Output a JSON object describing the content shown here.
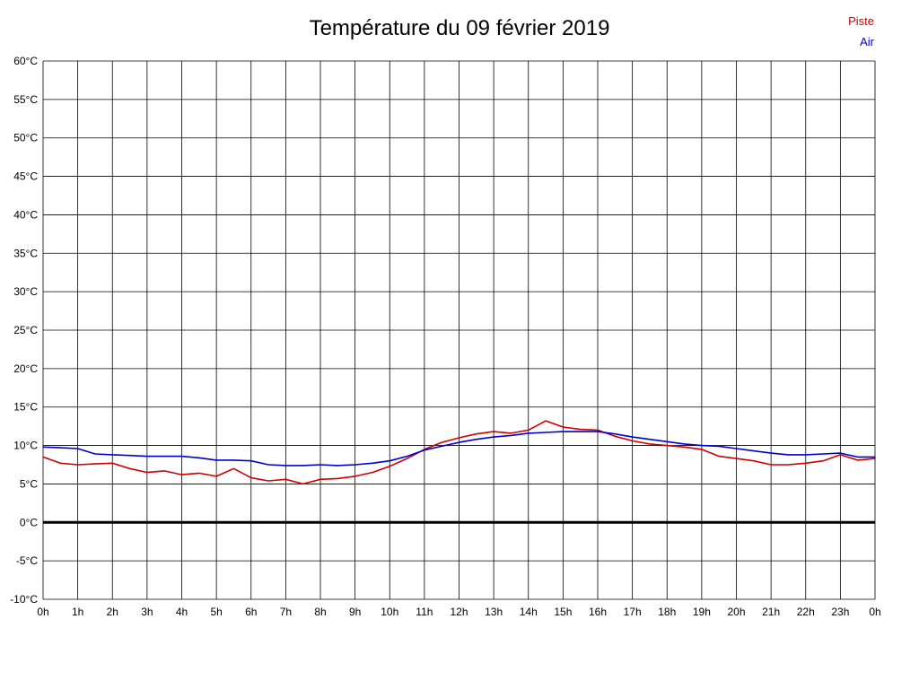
{
  "title": "Température du 09 février 2019",
  "legend": [
    {
      "label": "Piste",
      "color": "#cc0000"
    },
    {
      "label": "Air",
      "color": "#0000cc"
    }
  ],
  "chart_data": {
    "type": "line",
    "title": "Température du 09 février 2019",
    "xlabel": "",
    "ylabel": "",
    "xlim": [
      0,
      24
    ],
    "ylim": [
      -10,
      60
    ],
    "grid": true,
    "zero_line": true,
    "legend_position": "top-right",
    "y_ticks": [
      60,
      55,
      50,
      45,
      40,
      35,
      30,
      25,
      20,
      15,
      10,
      5,
      0,
      -5,
      -10
    ],
    "y_tick_suffix": "°C",
    "x_tick_labels": [
      "0h",
      "1h",
      "2h",
      "3h",
      "4h",
      "5h",
      "6h",
      "7h",
      "8h",
      "9h",
      "10h",
      "11h",
      "12h",
      "13h",
      "14h",
      "15h",
      "16h",
      "17h",
      "18h",
      "19h",
      "20h",
      "21h",
      "22h",
      "23h",
      "0h"
    ],
    "x": [
      0,
      0.5,
      1,
      1.5,
      2,
      2.5,
      3,
      3.5,
      4,
      4.5,
      5,
      5.5,
      6,
      6.5,
      7,
      7.5,
      8,
      8.5,
      9,
      9.5,
      10,
      10.5,
      11,
      11.5,
      12,
      12.5,
      13,
      13.5,
      14,
      14.5,
      15,
      15.5,
      16,
      16.5,
      17,
      17.5,
      18,
      18.5,
      19,
      19.5,
      20,
      20.5,
      21,
      21.5,
      22,
      22.5,
      23,
      23.5,
      24
    ],
    "series": [
      {
        "name": "Piste",
        "color": "#cc0000",
        "values": [
          8.5,
          7.7,
          7.5,
          7.6,
          7.7,
          7.0,
          6.5,
          6.7,
          6.2,
          6.4,
          6.0,
          7.0,
          5.8,
          5.4,
          5.6,
          5.0,
          5.6,
          5.7,
          6.0,
          6.5,
          7.3,
          8.3,
          9.5,
          10.4,
          11.0,
          11.5,
          11.8,
          11.6,
          12.0,
          13.2,
          12.4,
          12.1,
          12.0,
          11.2,
          10.6,
          10.2,
          10.0,
          9.8,
          9.5,
          8.6,
          8.3,
          8.0,
          7.5,
          7.5,
          7.7,
          8.0,
          8.8,
          8.1,
          8.3
        ]
      },
      {
        "name": "Air",
        "color": "#0000cc",
        "values": [
          9.8,
          9.7,
          9.6,
          8.9,
          8.8,
          8.7,
          8.6,
          8.6,
          8.6,
          8.4,
          8.1,
          8.1,
          8.0,
          7.5,
          7.4,
          7.4,
          7.5,
          7.4,
          7.5,
          7.7,
          8.0,
          8.6,
          9.4,
          9.9,
          10.4,
          10.8,
          11.1,
          11.3,
          11.6,
          11.7,
          11.8,
          11.8,
          11.8,
          11.5,
          11.1,
          10.8,
          10.5,
          10.2,
          10.0,
          9.9,
          9.6,
          9.3,
          9.0,
          8.8,
          8.8,
          8.9,
          9.0,
          8.5,
          8.5
        ]
      }
    ]
  }
}
